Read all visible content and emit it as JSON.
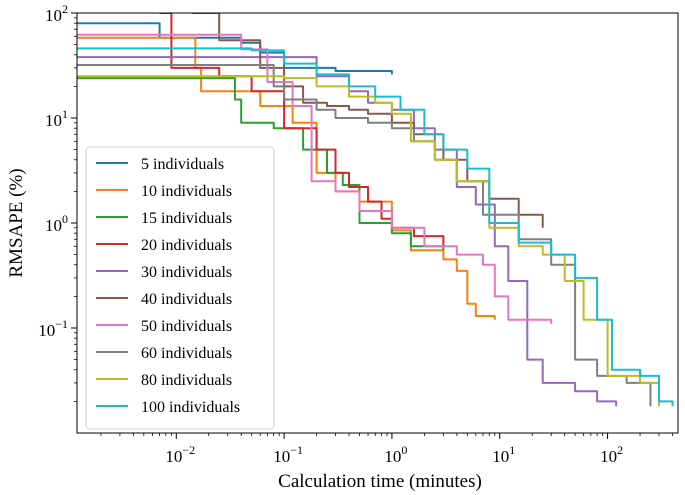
{
  "chart_data": {
    "type": "line",
    "title": "",
    "xlabel": "Calculation time (minutes)",
    "ylabel": "RMSAPE (%)",
    "xscale": "log",
    "yscale": "log",
    "xlim": [
      0.0012,
      450
    ],
    "ylim": [
      0.01,
      100
    ],
    "grid": false,
    "legend_position": "lower-left",
    "x_ticks": [
      {
        "value": 0.01,
        "base": "10",
        "exp": "−2"
      },
      {
        "value": 0.1,
        "base": "10",
        "exp": "−1"
      },
      {
        "value": 1,
        "base": "10",
        "exp": "0"
      },
      {
        "value": 10,
        "base": "10",
        "exp": "1"
      },
      {
        "value": 100,
        "base": "10",
        "exp": "2"
      }
    ],
    "y_ticks": [
      {
        "value": 0.1,
        "base": "10",
        "exp": "−1"
      },
      {
        "value": 1,
        "base": "10",
        "exp": "0"
      },
      {
        "value": 10,
        "base": "10",
        "exp": "1"
      },
      {
        "value": 100,
        "base": "10",
        "exp": "2"
      }
    ],
    "series": [
      {
        "name": "5 individuals",
        "color": "#1f77b4",
        "points": [
          [
            0.0012,
            80
          ],
          [
            0.007,
            80
          ],
          [
            0.007,
            58
          ],
          [
            0.025,
            58
          ],
          [
            0.04,
            52
          ],
          [
            0.06,
            42
          ],
          [
            0.1,
            30
          ],
          [
            0.3,
            28
          ],
          [
            1,
            26
          ]
        ]
      },
      {
        "name": "10 individuals",
        "color": "#ff7f0e",
        "points": [
          [
            0.0012,
            58
          ],
          [
            0.013,
            58
          ],
          [
            0.015,
            30
          ],
          [
            0.017,
            18
          ],
          [
            0.035,
            18
          ],
          [
            0.06,
            13
          ],
          [
            0.12,
            9
          ],
          [
            0.2,
            3
          ],
          [
            0.3,
            2
          ],
          [
            0.5,
            1.6
          ],
          [
            1,
            0.85
          ],
          [
            1.5,
            0.55
          ],
          [
            3,
            0.45
          ],
          [
            4,
            0.35
          ],
          [
            5,
            0.17
          ],
          [
            6,
            0.13
          ],
          [
            9,
            0.12
          ]
        ]
      },
      {
        "name": "15 individuals",
        "color": "#2ca02c",
        "points": [
          [
            0.0012,
            24
          ],
          [
            0.03,
            24
          ],
          [
            0.035,
            15
          ],
          [
            0.04,
            9
          ],
          [
            0.08,
            8
          ],
          [
            0.15,
            5
          ],
          [
            0.25,
            3
          ],
          [
            0.35,
            2.3
          ],
          [
            0.5,
            1
          ],
          [
            1,
            0.8
          ],
          [
            1.5,
            0.6
          ],
          [
            3,
            0.55
          ]
        ]
      },
      {
        "name": "20 individuals",
        "color": "#d62728",
        "points": [
          [
            0.007,
            100
          ],
          [
            0.009,
            30
          ],
          [
            0.025,
            25
          ],
          [
            0.05,
            18
          ],
          [
            0.1,
            8
          ],
          [
            0.2,
            5
          ],
          [
            0.3,
            3
          ],
          [
            0.4,
            2.2
          ],
          [
            0.6,
            1.6
          ],
          [
            0.8,
            1.1
          ],
          [
            1,
            0.9
          ],
          [
            1.6,
            0.75
          ],
          [
            3,
            0.6
          ]
        ]
      },
      {
        "name": "30 individuals",
        "color": "#9467bd",
        "points": [
          [
            0.0012,
            38
          ],
          [
            0.04,
            38
          ],
          [
            0.2,
            25
          ],
          [
            0.4,
            18
          ],
          [
            0.6,
            14
          ],
          [
            1,
            12
          ],
          [
            1.6,
            8
          ],
          [
            2.5,
            5
          ],
          [
            4,
            2.2
          ],
          [
            6,
            1.5
          ],
          [
            9,
            0.6
          ],
          [
            12,
            0.28
          ],
          [
            18,
            0.05
          ],
          [
            25,
            0.03
          ],
          [
            50,
            0.025
          ],
          [
            80,
            0.02
          ],
          [
            120,
            0.018
          ]
        ]
      },
      {
        "name": "40 individuals",
        "color": "#8c564b",
        "points": [
          [
            0.014,
            100
          ],
          [
            0.025,
            55
          ],
          [
            0.06,
            30
          ],
          [
            0.1,
            20
          ],
          [
            0.15,
            14
          ],
          [
            0.25,
            13
          ],
          [
            0.4,
            12
          ],
          [
            0.6,
            11
          ],
          [
            1,
            9
          ],
          [
            1.6,
            7
          ],
          [
            3,
            4
          ],
          [
            5,
            2.5
          ],
          [
            8,
            1.7
          ],
          [
            15,
            1.2
          ],
          [
            25,
            0.9
          ]
        ]
      },
      {
        "name": "50 individuals",
        "color": "#e377c2",
        "points": [
          [
            0.0012,
            62
          ],
          [
            0.02,
            62
          ],
          [
            0.04,
            45
          ],
          [
            0.07,
            22
          ],
          [
            0.12,
            13
          ],
          [
            0.18,
            2.5
          ],
          [
            0.3,
            2
          ],
          [
            0.5,
            1.3
          ],
          [
            1,
            0.9
          ],
          [
            2,
            0.6
          ],
          [
            4,
            0.5
          ],
          [
            7,
            0.4
          ],
          [
            9,
            0.2
          ],
          [
            12,
            0.12
          ],
          [
            30,
            0.11
          ]
        ]
      },
      {
        "name": "60 individuals",
        "color": "#7f7f7f",
        "points": [
          [
            0.0012,
            32
          ],
          [
            0.04,
            32
          ],
          [
            0.08,
            20
          ],
          [
            0.1,
            15
          ],
          [
            0.2,
            12
          ],
          [
            0.3,
            10
          ],
          [
            0.6,
            9
          ],
          [
            1,
            8
          ],
          [
            1.6,
            6
          ],
          [
            2.5,
            4
          ],
          [
            4,
            2.5
          ],
          [
            7,
            1.2
          ],
          [
            15,
            0.7
          ],
          [
            30,
            0.4
          ],
          [
            50,
            0.05
          ],
          [
            80,
            0.035
          ],
          [
            150,
            0.03
          ],
          [
            250,
            0.018
          ]
        ]
      },
      {
        "name": "80 individuals",
        "color": "#bcbd22",
        "points": [
          [
            0.0012,
            25
          ],
          [
            0.05,
            25
          ],
          [
            0.1,
            24
          ],
          [
            0.2,
            20
          ],
          [
            0.4,
            16
          ],
          [
            0.7,
            14
          ],
          [
            1,
            11
          ],
          [
            1.5,
            6
          ],
          [
            2.5,
            4
          ],
          [
            4,
            2.5
          ],
          [
            8,
            0.9
          ],
          [
            15,
            0.6
          ],
          [
            25,
            0.5
          ],
          [
            40,
            0.28
          ],
          [
            60,
            0.12
          ],
          [
            100,
            0.035
          ],
          [
            200,
            0.03
          ],
          [
            300,
            0.018
          ]
        ]
      },
      {
        "name": "100 individuals",
        "color": "#17becf",
        "points": [
          [
            0.0012,
            46
          ],
          [
            0.02,
            46
          ],
          [
            0.05,
            44
          ],
          [
            0.1,
            33
          ],
          [
            0.2,
            26
          ],
          [
            0.4,
            20
          ],
          [
            0.7,
            16
          ],
          [
            1.2,
            12
          ],
          [
            2,
            7
          ],
          [
            3,
            5
          ],
          [
            5,
            3.3
          ],
          [
            8,
            1
          ],
          [
            15,
            0.65
          ],
          [
            30,
            0.5
          ],
          [
            50,
            0.3
          ],
          [
            80,
            0.12
          ],
          [
            110,
            0.04
          ],
          [
            200,
            0.035
          ],
          [
            300,
            0.02
          ],
          [
            400,
            0.018
          ]
        ]
      }
    ]
  }
}
